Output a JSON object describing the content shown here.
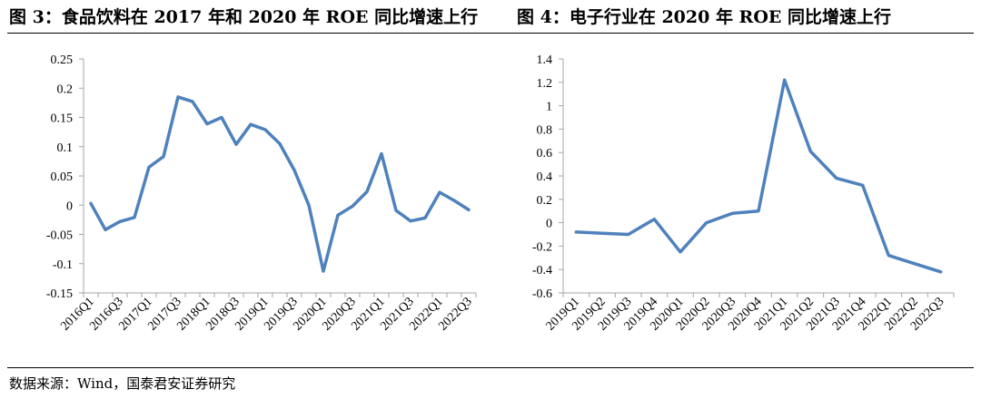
{
  "header": {
    "left_title": "图 3：食品饮料在 2017 年和 2020 年 ROE 同比增速上行",
    "right_title": "图 4：电子行业在 2020 年 ROE 同比增速上行"
  },
  "footer": {
    "source": "数据来源：Wind，国泰君安证券研究"
  },
  "style": {
    "line_color": "#4f81bd",
    "axis_color": "#a6a6a6"
  },
  "chart_data": [
    {
      "type": "line",
      "categories": [
        "2016Q1",
        "2016Q2",
        "2016Q3",
        "2016Q4",
        "2017Q1",
        "2017Q2",
        "2017Q3",
        "2017Q4",
        "2018Q1",
        "2018Q2",
        "2018Q3",
        "2018Q4",
        "2019Q1",
        "2019Q2",
        "2019Q3",
        "2019Q4",
        "2020Q1",
        "2020Q2",
        "2020Q3",
        "2020Q4",
        "2021Q1",
        "2021Q2",
        "2021Q3",
        "2021Q4",
        "2022Q1",
        "2022Q2",
        "2022Q3"
      ],
      "category_labels": [
        "2016Q1",
        "",
        "2016Q3",
        "",
        "2017Q1",
        "",
        "2017Q3",
        "",
        "2018Q1",
        "",
        "2018Q3",
        "",
        "2019Q1",
        "",
        "2019Q3",
        "",
        "2020Q1",
        "",
        "2020Q3",
        "",
        "2021Q1",
        "",
        "2021Q3",
        "",
        "2022Q1",
        "",
        "2022Q3"
      ],
      "series": [
        {
          "values": [
            0.003,
            -0.042,
            -0.028,
            -0.021,
            0.065,
            0.083,
            0.185,
            0.177,
            0.139,
            0.15,
            0.104,
            0.138,
            0.129,
            0.105,
            0.06,
            0.0,
            -0.113,
            -0.017,
            -0.002,
            0.023,
            0.088,
            -0.009,
            -0.027,
            -0.022,
            0.022,
            0.008,
            -0.008
          ]
        }
      ],
      "ylim": [
        -0.15,
        0.25
      ],
      "y_ticks": [
        0.25,
        0.2,
        0.15,
        0.1,
        0.05,
        0,
        -0.05,
        -0.1,
        -0.15
      ],
      "y_tick_labels": [
        "0.25",
        "0.2",
        "0.15",
        "0.1",
        "0.05",
        "0",
        "-0.05",
        "-0.1",
        "-0.15"
      ],
      "grid": false
    },
    {
      "type": "line",
      "categories": [
        "2019Q1",
        "2019Q2",
        "2019Q3",
        "2019Q4",
        "2020Q1",
        "2020Q2",
        "2020Q3",
        "2020Q4",
        "2021Q1",
        "2021Q2",
        "2021Q3",
        "2021Q4",
        "2022Q1",
        "2022Q2",
        "2022Q3"
      ],
      "category_labels": [
        "2019Q1",
        "2019Q2",
        "2019Q3",
        "2019Q4",
        "2020Q1",
        "2020Q2",
        "2020Q3",
        "2020Q4",
        "2021Q1",
        "2021Q2",
        "2021Q3",
        "2021Q4",
        "2022Q1",
        "2022Q2",
        "2022Q3"
      ],
      "series": [
        {
          "values": [
            -0.08,
            -0.09,
            -0.1,
            0.03,
            -0.25,
            0.0,
            0.08,
            0.1,
            1.22,
            0.61,
            0.38,
            0.32,
            -0.28,
            -0.35,
            -0.42
          ]
        }
      ],
      "ylim": [
        -0.6,
        1.4
      ],
      "y_ticks": [
        1.4,
        1.2,
        1,
        0.8,
        0.6,
        0.4,
        0.2,
        0,
        -0.2,
        -0.4,
        -0.6
      ],
      "y_tick_labels": [
        "1.4",
        "1.2",
        "1",
        "0.8",
        "0.6",
        "0.4",
        "0.2",
        "0",
        "-0.2",
        "-0.4",
        "-0.6"
      ],
      "grid": false
    }
  ]
}
